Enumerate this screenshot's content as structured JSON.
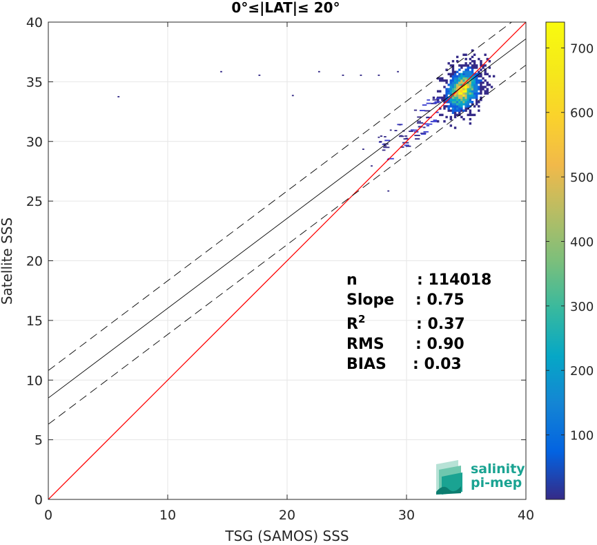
{
  "chart_data": {
    "type": "heatmap",
    "title": "0°≤|LAT|≤ 20°",
    "xlabel": "TSG (SAMOS) SSS",
    "ylabel": "Satellite SSS",
    "xlim": [
      0,
      40
    ],
    "ylim": [
      0,
      40
    ],
    "xticks": [
      "0",
      "10",
      "20",
      "30",
      "40"
    ],
    "yticks": [
      "0",
      "5",
      "10",
      "15",
      "20",
      "25",
      "30",
      "35",
      "40"
    ],
    "grid": true,
    "colorbar": {
      "range": [
        0,
        740
      ],
      "ticks": [
        "100",
        "200",
        "300",
        "400",
        "500",
        "600",
        "700"
      ]
    },
    "lines": [
      {
        "name": "one-to-one",
        "style": "solid",
        "color": "#ff0000",
        "points": [
          [
            0,
            0
          ],
          [
            40,
            40
          ]
        ]
      },
      {
        "name": "regression",
        "style": "solid",
        "color": "#000000",
        "points": [
          [
            0,
            8.5
          ],
          [
            40,
            38.6
          ]
        ]
      },
      {
        "name": "upper-bound",
        "style": "dashed",
        "color": "#000000",
        "points": [
          [
            0,
            10.8
          ],
          [
            40,
            40.9
          ]
        ]
      },
      {
        "name": "lower-bound",
        "style": "dashed",
        "color": "#000000",
        "points": [
          [
            0,
            6.3
          ],
          [
            40,
            36.4
          ]
        ]
      }
    ],
    "density_cluster": {
      "center_x": 34.6,
      "center_y": 34.4,
      "spread_x": 1.0,
      "spread_y": 1.3,
      "peak_count": 740
    },
    "outliers": [
      [
        5.8,
        33.8
      ],
      [
        14.4,
        35.9
      ],
      [
        17.6,
        35.6
      ],
      [
        20.4,
        33.9
      ],
      [
        22.6,
        35.9
      ],
      [
        24.6,
        35.6
      ],
      [
        26.1,
        35.6
      ],
      [
        27.6,
        35.6
      ],
      [
        29.2,
        35.9
      ],
      [
        28.4,
        25.9
      ],
      [
        27.0,
        28.0
      ],
      [
        26.3,
        29.4
      ],
      [
        27.6,
        30.4
      ],
      [
        28.6,
        31.0
      ]
    ],
    "stats": [
      {
        "label": "n",
        "value": ": 114018"
      },
      {
        "label": "Slope",
        "value": ": 0.75"
      },
      {
        "label": "R",
        "sup": "2",
        "value": ": 0.37"
      },
      {
        "label": "RMS",
        "value": ": 0.90"
      },
      {
        "label": "BIAS",
        "value": ": 0.03"
      }
    ]
  },
  "logo": {
    "line1": "salinity",
    "line2": "pi-mep",
    "color": "#1aa392"
  }
}
